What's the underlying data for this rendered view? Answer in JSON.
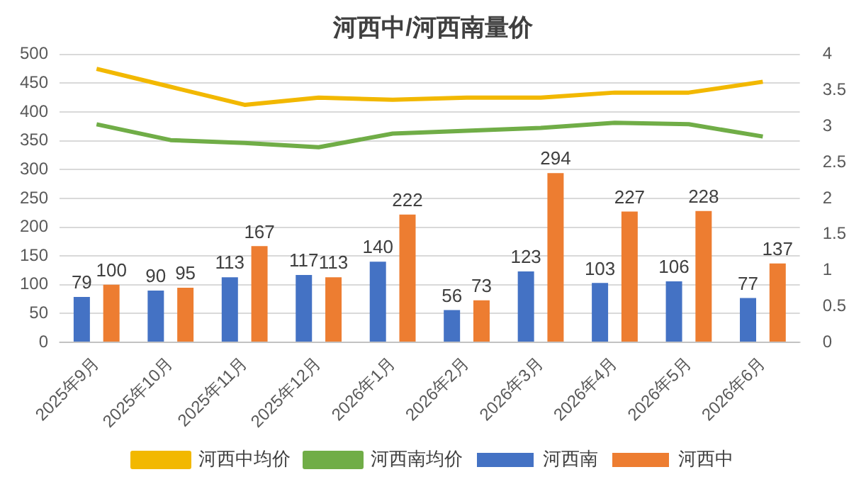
{
  "chart_data": {
    "type": "bar",
    "title": "河西中/河西南量价",
    "categories": [
      "2025年9月",
      "2025年10月",
      "2025年11月",
      "2025年12月",
      "2026年1月",
      "2026年2月",
      "2026年3月",
      "2026年4月",
      "2026年5月",
      "2026年6月"
    ],
    "series": [
      {
        "name": "河西南",
        "color": "#4472c4",
        "values": [
          79,
          90,
          113,
          117,
          140,
          56,
          123,
          103,
          106,
          77
        ],
        "value_labels": [
          "79",
          "90",
          "113",
          "117",
          "140",
          "56",
          "123",
          "103",
          "106",
          "77"
        ]
      },
      {
        "name": "河西中",
        "color": "#ed7d31",
        "values": [
          100,
          95,
          167,
          113,
          222,
          73,
          294,
          227,
          228,
          137
        ],
        "value_labels": [
          "100",
          "95",
          "167",
          "113",
          "222",
          "73",
          "294",
          "227",
          "228",
          "137"
        ]
      },
      {
        "name": "河西中均价",
        "type": "line",
        "axis": "y2",
        "color": "#f2b800",
        "values": [
          3.8,
          3.55,
          3.3,
          3.4,
          3.37,
          3.4,
          3.4,
          3.47,
          3.47,
          3.62
        ]
      },
      {
        "name": "河西南均价",
        "type": "line",
        "axis": "y2",
        "color": "#70ad47",
        "values": [
          3.03,
          2.81,
          2.77,
          2.71,
          2.9,
          2.94,
          2.98,
          3.05,
          3.03,
          2.86
        ]
      }
    ],
    "ylim": [
      0,
      500
    ],
    "yticks": [
      0,
      50,
      100,
      150,
      200,
      250,
      300,
      350,
      400,
      450,
      500
    ],
    "y2lim": [
      0,
      4
    ],
    "y2ticks": [
      0,
      0.5,
      1,
      1.5,
      2,
      2.5,
      3,
      3.5,
      4
    ],
    "grid": "y",
    "legend": "bottom",
    "marker": "none",
    "line_style": "solid"
  }
}
